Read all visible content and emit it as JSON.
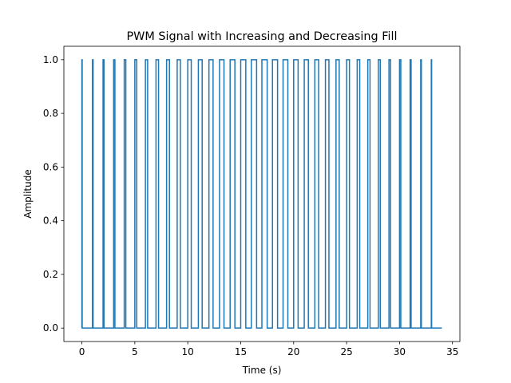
{
  "chart_data": {
    "type": "line",
    "title": "PWM Signal with Increasing and Decreasing Fill",
    "xlabel": "Time (s)",
    "ylabel": "Amplitude",
    "xlim": [
      -1.7,
      35.7
    ],
    "ylim": [
      -0.05,
      1.05
    ],
    "xticks": [
      0,
      5,
      10,
      15,
      20,
      25,
      30,
      35
    ],
    "yticks": [
      0.0,
      0.2,
      0.4,
      0.6,
      0.8,
      1.0
    ],
    "xtick_labels": [
      "0",
      "5",
      "10",
      "15",
      "20",
      "25",
      "30",
      "35"
    ],
    "ytick_labels": [
      "0.0",
      "0.2",
      "0.4",
      "0.6",
      "0.8",
      "1.0"
    ],
    "grid": false,
    "series": [
      {
        "color": "#1f77b4",
        "period_s": 1,
        "pulse_starts": [
          0,
          1,
          2,
          3,
          4,
          5,
          6,
          7,
          8,
          9,
          10,
          11,
          12,
          13,
          14,
          15,
          16,
          17,
          18,
          19,
          20,
          21,
          22,
          23,
          24,
          25,
          26,
          27,
          28,
          29,
          30,
          31,
          32,
          33
        ],
        "duty_cycle": [
          0.03,
          0.06,
          0.09,
          0.12,
          0.15,
          0.18,
          0.21,
          0.24,
          0.27,
          0.3,
          0.33,
          0.36,
          0.39,
          0.42,
          0.45,
          0.48,
          0.5,
          0.5,
          0.48,
          0.45,
          0.42,
          0.39,
          0.36,
          0.33,
          0.3,
          0.27,
          0.24,
          0.21,
          0.18,
          0.15,
          0.12,
          0.09,
          0.06,
          0.03
        ],
        "high": 1.0,
        "low": 0.0,
        "end_time": 34
      }
    ]
  }
}
